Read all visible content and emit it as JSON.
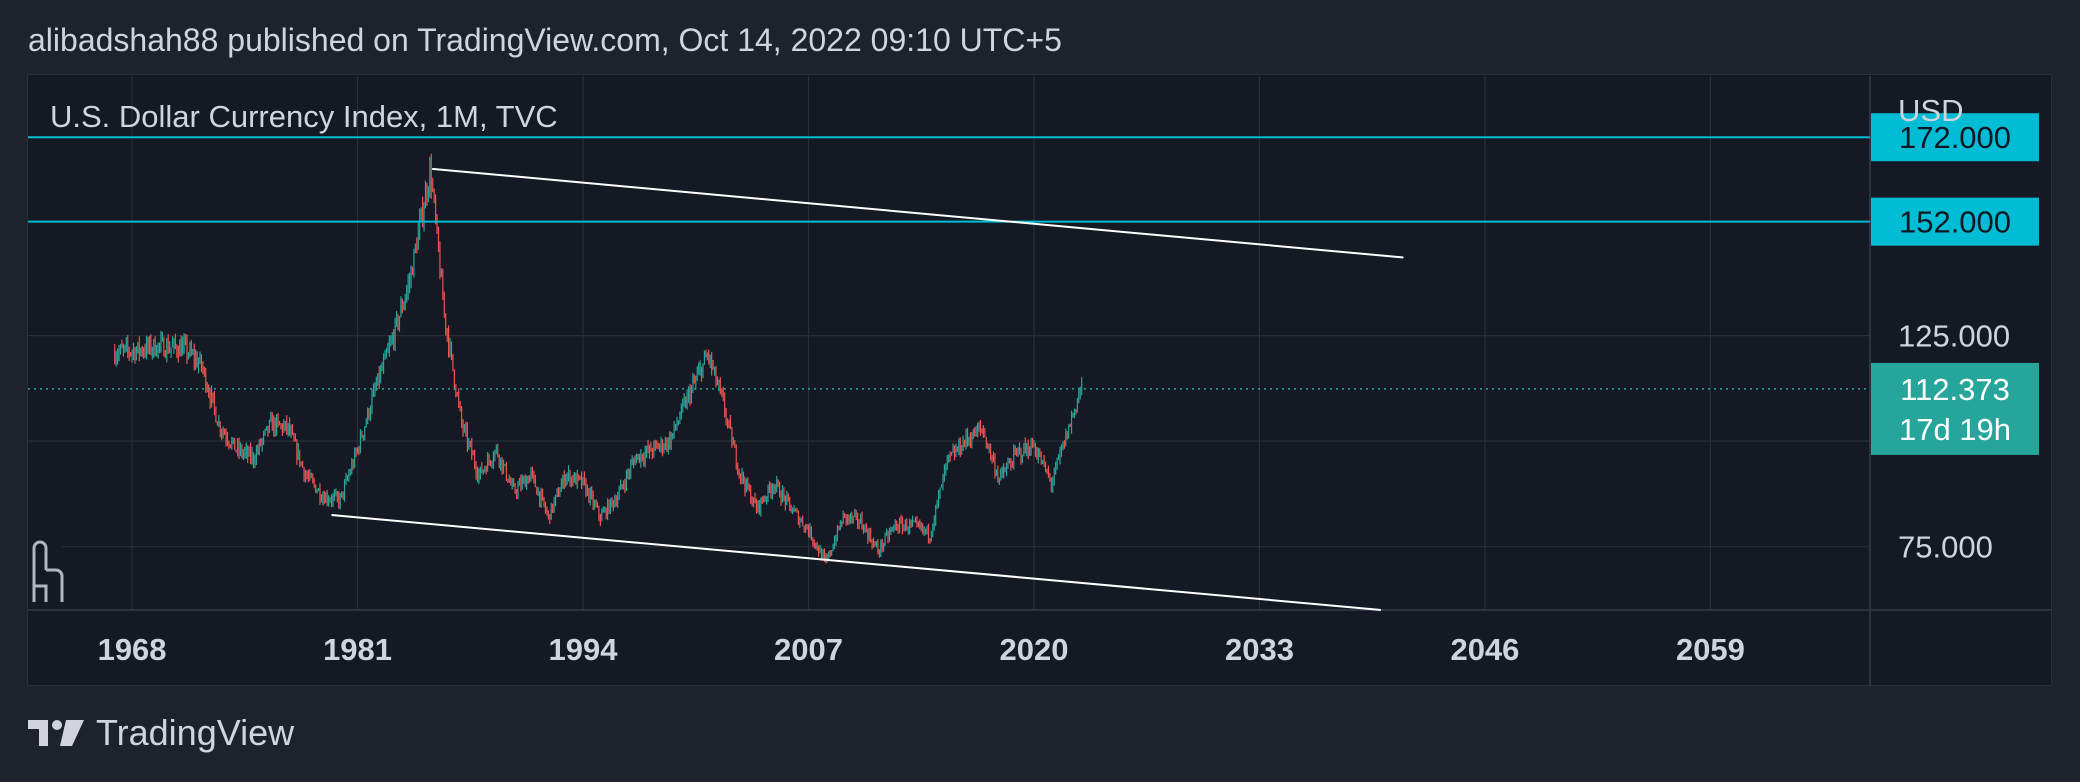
{
  "header": {
    "publish_line": "alibadshah88 published on TradingView.com, Oct 14, 2022 09:10 UTC+5"
  },
  "chart_title": "U.S. Dollar Currency Index, 1M, TVC",
  "footer": {
    "brand": "TradingView"
  },
  "colors": {
    "background": "#151924",
    "grid": "#2a2e39",
    "up": "#26a69a",
    "down": "#ef5350",
    "level_line": "#00bcd4",
    "trend_line": "#ffffff",
    "text": "#d1d4dc"
  },
  "chart_data": {
    "type": "candlestick",
    "title": "U.S. Dollar Currency Index, 1M, TVC",
    "currency": "USD",
    "x_ticks": [
      1968,
      1981,
      1994,
      2007,
      2020,
      2033,
      2046,
      2059
    ],
    "y_ticks": [
      75,
      125
    ],
    "y_tick_labels": [
      "75.000",
      "125.000"
    ],
    "xlim": [
      1962,
      2068.2
    ],
    "ylim": [
      60,
      186.5
    ],
    "grid": true,
    "horizontal_levels": [
      {
        "value": 172,
        "label": "172.000",
        "color": "#00bcd4"
      },
      {
        "value": 152,
        "label": "152.000",
        "color": "#00bcd4"
      }
    ],
    "current_price": {
      "value": 112.373,
      "label": "112.373",
      "countdown": "17d 19h",
      "color": "#26a69a"
    },
    "trend_lines": [
      {
        "name": "upper",
        "x1": 1985.3,
        "y1": 164.5,
        "x2": 2041.3,
        "y2": 143.5
      },
      {
        "name": "lower",
        "x1": 1979.5,
        "y1": 82.5,
        "x2": 2040.0,
        "y2": 60.0
      }
    ],
    "price_path": [
      [
        1967.0,
        121.0
      ],
      [
        1968.2,
        121.5
      ],
      [
        1969.5,
        122.5
      ],
      [
        1971.0,
        122.0
      ],
      [
        1972.0,
        118.0
      ],
      [
        1973.0,
        104.0
      ],
      [
        1974.0,
        98.0
      ],
      [
        1975.0,
        96.0
      ],
      [
        1976.0,
        104.0
      ],
      [
        1977.0,
        103.0
      ],
      [
        1978.0,
        92.0
      ],
      [
        1979.0,
        87.0
      ],
      [
        1980.0,
        86.0
      ],
      [
        1981.0,
        98.0
      ],
      [
        1982.0,
        112.0
      ],
      [
        1983.0,
        124.0
      ],
      [
        1984.0,
        138.0
      ],
      [
        1985.2,
        164.5
      ],
      [
        1986.0,
        130.0
      ],
      [
        1987.0,
        104.0
      ],
      [
        1988.0,
        92.0
      ],
      [
        1989.0,
        98.0
      ],
      [
        1990.0,
        88.0
      ],
      [
        1991.0,
        92.0
      ],
      [
        1992.0,
        82.0
      ],
      [
        1993.0,
        92.0
      ],
      [
        1994.0,
        90.0
      ],
      [
        1995.0,
        82.0
      ],
      [
        1996.0,
        87.0
      ],
      [
        1997.0,
        96.0
      ],
      [
        1998.0,
        98.0
      ],
      [
        1999.0,
        100.0
      ],
      [
        2000.0,
        110.0
      ],
      [
        2001.2,
        120.5
      ],
      [
        2002.0,
        110.0
      ],
      [
        2003.0,
        93.0
      ],
      [
        2004.0,
        84.0
      ],
      [
        2005.0,
        90.0
      ],
      [
        2006.0,
        84.0
      ],
      [
        2007.0,
        79.0
      ],
      [
        2008.0,
        71.0
      ],
      [
        2009.0,
        82.0
      ],
      [
        2010.0,
        81.0
      ],
      [
        2011.0,
        74.0
      ],
      [
        2012.0,
        80.0
      ],
      [
        2013.0,
        80.0
      ],
      [
        2014.0,
        78.0
      ],
      [
        2015.0,
        95.0
      ],
      [
        2016.0,
        100.0
      ],
      [
        2017.0,
        103.0
      ],
      [
        2018.0,
        91.0
      ],
      [
        2019.0,
        97.0
      ],
      [
        2020.0,
        99.0
      ],
      [
        2021.0,
        90.0
      ],
      [
        2022.0,
        103.0
      ],
      [
        2022.8,
        114.0
      ]
    ]
  }
}
